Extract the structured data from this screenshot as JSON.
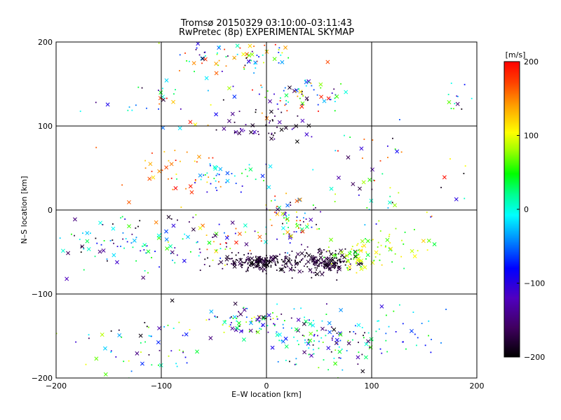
{
  "title_line1": "Tromsø 20150329 03:10:00–03:11:43",
  "title_line2": "RwPretec (8p) EXPERIMENTAL SKYMAP",
  "chart_data": {
    "type": "scatter",
    "xlabel": "E–W location [km]",
    "ylabel": "N–S location [km]",
    "xlim": [
      -200,
      200
    ],
    "ylim": [
      -200,
      200
    ],
    "xticks": [
      -200,
      -100,
      0,
      100,
      200
    ],
    "yticks": [
      -200,
      -100,
      0,
      100,
      200
    ],
    "grid": true,
    "colorbar": {
      "label": "[m/s]",
      "range": [
        -200,
        200
      ],
      "ticks": [
        200,
        100,
        0,
        -100,
        -200
      ],
      "colormap": [
        "#000000",
        "#400060",
        "#5000c0",
        "#0000ff",
        "#0090ff",
        "#00ffff",
        "#00ff90",
        "#00ff00",
        "#a0ff00",
        "#ffff00",
        "#ffa000",
        "#ff4000",
        "#ff0000"
      ]
    },
    "clusters": [
      {
        "x": -25,
        "y": 185,
        "sx": 30,
        "sy": 12,
        "n": 80,
        "vmin": -200,
        "vmax": 200
      },
      {
        "x": 30,
        "y": 135,
        "sx": 25,
        "sy": 12,
        "n": 70,
        "vmin": -200,
        "vmax": 200
      },
      {
        "x": -90,
        "y": 130,
        "sx": 35,
        "sy": 15,
        "n": 40,
        "vmin": -200,
        "vmax": 200
      },
      {
        "x": 5,
        "y": 100,
        "sx": 25,
        "sy": 10,
        "n": 50,
        "vmin": -200,
        "vmax": -120
      },
      {
        "x": -90,
        "y": 45,
        "sx": 25,
        "sy": 20,
        "n": 40,
        "vmin": 100,
        "vmax": 200
      },
      {
        "x": -40,
        "y": 40,
        "sx": 20,
        "sy": 8,
        "n": 40,
        "vmin": -120,
        "vmax": 40
      },
      {
        "x": 20,
        "y": -10,
        "sx": 15,
        "sy": 15,
        "n": 80,
        "vmin": -200,
        "vmax": 200
      },
      {
        "x": -140,
        "y": -40,
        "sx": 35,
        "sy": 20,
        "n": 90,
        "vmin": -200,
        "vmax": 60
      },
      {
        "x": -50,
        "y": -40,
        "sx": 30,
        "sy": 18,
        "n": 60,
        "vmin": -200,
        "vmax": 200
      },
      {
        "x": -5,
        "y": -62,
        "sx": 20,
        "sy": 5,
        "n": 180,
        "vmin": -200,
        "vmax": -170
      },
      {
        "x": 55,
        "y": -62,
        "sx": 15,
        "sy": 8,
        "n": 200,
        "vmin": -200,
        "vmax": -170
      },
      {
        "x": 85,
        "y": -55,
        "sx": 15,
        "sy": 10,
        "n": 60,
        "vmin": 20,
        "vmax": 120
      },
      {
        "x": 120,
        "y": -40,
        "sx": 15,
        "sy": 10,
        "n": 30,
        "vmin": 0,
        "vmax": 120
      },
      {
        "x": -20,
        "y": -132,
        "sx": 20,
        "sy": 8,
        "n": 80,
        "vmin": -200,
        "vmax": 100
      },
      {
        "x": 55,
        "y": -155,
        "sx": 25,
        "sy": 15,
        "n": 120,
        "vmin": -200,
        "vmax": 60
      },
      {
        "x": -120,
        "y": -160,
        "sx": 40,
        "sy": 20,
        "n": 60,
        "vmin": -200,
        "vmax": 100
      },
      {
        "x": 125,
        "y": -140,
        "sx": 25,
        "sy": 15,
        "n": 35,
        "vmin": -120,
        "vmax": 40
      },
      {
        "x": 110,
        "y": 40,
        "sx": 40,
        "sy": 40,
        "n": 60,
        "vmin": -200,
        "vmax": 200
      },
      {
        "x": 180,
        "y": 130,
        "sx": 15,
        "sy": 15,
        "n": 12,
        "vmin": -200,
        "vmax": 100
      }
    ]
  }
}
